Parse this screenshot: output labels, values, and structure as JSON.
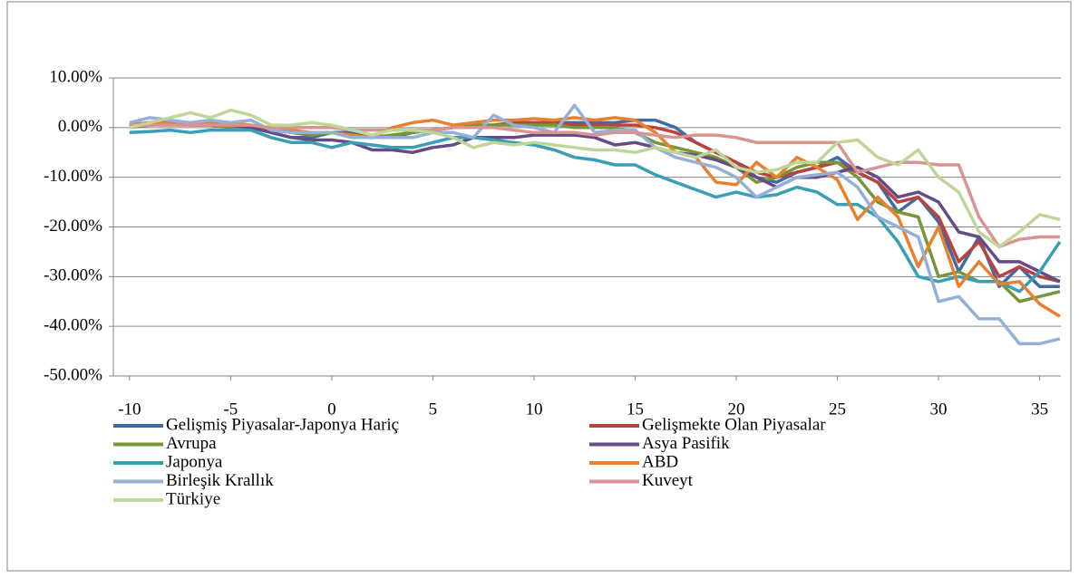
{
  "chart_data": {
    "type": "line",
    "x": [
      -10,
      -9,
      -8,
      -7,
      -6,
      -5,
      -4,
      -3,
      -2,
      -1,
      0,
      1,
      2,
      3,
      4,
      5,
      6,
      7,
      8,
      9,
      10,
      11,
      12,
      13,
      14,
      15,
      16,
      17,
      18,
      19,
      20,
      21,
      22,
      23,
      24,
      25,
      26,
      27,
      28,
      29,
      30,
      31,
      32,
      33,
      34,
      35,
      36
    ],
    "xlim": [
      -10.8,
      36.05
    ],
    "xticks": [
      -10,
      -5,
      0,
      5,
      10,
      15,
      20,
      25,
      30,
      35
    ],
    "ylim": [
      -50,
      10
    ],
    "yticks": [
      {
        "value": 10,
        "label": "10.00%"
      },
      {
        "value": 0,
        "label": "0.00%"
      },
      {
        "value": -10,
        "label": "-10.00%"
      },
      {
        "value": -20,
        "label": "-20.00%"
      },
      {
        "value": -30,
        "label": "-30.00%"
      },
      {
        "value": -40,
        "label": "-40.00%"
      },
      {
        "value": -50,
        "label": "-50.00%"
      }
    ],
    "grid": true,
    "legend": "bottom",
    "series": [
      {
        "name": "Gelişmiş Piyasalar-Japonya Hariç",
        "color": "#3f6aa6",
        "values": [
          0.5,
          1,
          1,
          1,
          0.5,
          0,
          0,
          -1,
          -2,
          -2,
          -1,
          -1,
          -2,
          -2,
          -1,
          -0.5,
          0,
          0.5,
          0.5,
          1,
          1,
          1,
          1,
          1,
          1,
          1.5,
          1.5,
          0,
          -3,
          -5,
          -7,
          -10,
          -11,
          -9,
          -8,
          -6,
          -9,
          -11,
          -17,
          -14,
          -19,
          -29,
          -22,
          -32,
          -28,
          -32,
          -32
        ]
      },
      {
        "name": "Gelişmekte Olan Piyasalar",
        "color": "#b8433f",
        "values": [
          0.5,
          1,
          1,
          0.5,
          0.5,
          0,
          0,
          -0.5,
          -1,
          -1.5,
          -1,
          -1.5,
          -2,
          -1.5,
          -1,
          -0.5,
          0,
          0.5,
          0.5,
          1,
          1,
          1,
          0.5,
          0.5,
          0.5,
          0.5,
          0,
          -1,
          -3,
          -5,
          -7,
          -9,
          -10,
          -9,
          -8,
          -7,
          -9,
          -11,
          -15,
          -14,
          -18,
          -27,
          -23,
          -30,
          -28,
          -30,
          -31
        ]
      },
      {
        "name": "Avrupa",
        "color": "#77963a",
        "values": [
          0,
          0.5,
          1,
          1,
          0.5,
          0,
          0,
          -0.5,
          -1,
          -1.5,
          -1,
          -1.5,
          -2,
          -1.5,
          -1,
          -0.5,
          0,
          0.5,
          0.5,
          0.5,
          0.5,
          0.5,
          0,
          0,
          0,
          -1,
          -3,
          -4,
          -5,
          -6,
          -8,
          -11,
          -10,
          -8,
          -7,
          -7,
          -10,
          -15,
          -17,
          -18,
          -30,
          -29,
          -31,
          -31,
          -35,
          -34,
          -33
        ]
      },
      {
        "name": "Asya Pasifik",
        "color": "#654c85",
        "values": [
          0.5,
          1,
          1,
          1,
          0.5,
          0.5,
          0,
          -1,
          -2,
          -2.5,
          -2.5,
          -3,
          -4.5,
          -4.5,
          -5,
          -4,
          -3.5,
          -2,
          -2,
          -2,
          -1.5,
          -1.5,
          -1.5,
          -2,
          -3.5,
          -3,
          -4,
          -5,
          -5.5,
          -6.5,
          -8,
          -10,
          -12,
          -10,
          -10,
          -9,
          -8,
          -10,
          -14,
          -13,
          -15,
          -21,
          -22,
          -27,
          -27,
          -29,
          -31
        ]
      },
      {
        "name": "Japonya",
        "color": "#3a9eb5",
        "values": [
          -1,
          -0.8,
          -0.5,
          -1,
          -0.5,
          -0.5,
          -0.5,
          -2,
          -3,
          -3,
          -4,
          -3,
          -3.5,
          -4,
          -4,
          -3,
          -2,
          -2,
          -2.5,
          -3,
          -3.5,
          -4.5,
          -6,
          -6.5,
          -7.5,
          -7.5,
          -9.5,
          -11,
          -12.5,
          -14,
          -13,
          -14,
          -13.5,
          -12,
          -13,
          -15.5,
          -15.5,
          -18,
          -23,
          -30,
          -31,
          -30,
          -31,
          -31,
          -33,
          -29,
          -23
        ]
      },
      {
        "name": "ABD",
        "color": "#e8812f",
        "values": [
          0.5,
          1,
          1,
          0.5,
          1,
          1,
          0.5,
          0,
          -0.5,
          -1,
          -1,
          -1.5,
          -2,
          0,
          1,
          1.5,
          0.5,
          1,
          1.5,
          1.5,
          1.8,
          1.5,
          2,
          1.5,
          2,
          1.5,
          -1,
          -5,
          -6,
          -11,
          -11.5,
          -7,
          -10,
          -6,
          -8,
          -10.5,
          -18.5,
          -14,
          -18,
          -28,
          -20,
          -32,
          -27,
          -31.5,
          -31,
          -35.5,
          -38
        ]
      },
      {
        "name": "Birleşik Krallık",
        "color": "#95b0d8",
        "values": [
          1,
          2,
          1.5,
          1,
          1.5,
          1,
          1.5,
          -0.5,
          -1,
          -1,
          -1,
          -2,
          -2,
          -2,
          -2,
          -1,
          -1,
          -2,
          2.5,
          0.5,
          0,
          -1,
          4.5,
          -1,
          -0.5,
          -0.5,
          -4,
          -6,
          -7,
          -8,
          -10,
          -14,
          -12,
          -10,
          -9.5,
          -9,
          -12,
          -18,
          -20,
          -22,
          -35,
          -34,
          -38.5,
          -38.5,
          -43.5,
          -43.5,
          -42.5
        ]
      },
      {
        "name": "Kuveyt",
        "color": "#d99391",
        "values": [
          0.5,
          0.5,
          0.5,
          0.5,
          0.5,
          0.5,
          0.5,
          0,
          0,
          0,
          0,
          -0.5,
          -0.5,
          -0.5,
          -0.5,
          -0.5,
          0,
          0,
          0,
          -0.5,
          -1,
          -1,
          -1,
          -1.5,
          -1,
          -1,
          -1.5,
          -2,
          -1.5,
          -1.5,
          -2,
          -3,
          -3,
          -3,
          -3,
          -3,
          -9,
          -8,
          -7,
          -7,
          -7.5,
          -7.5,
          -18,
          -24,
          -22.5,
          -22,
          -22
        ]
      },
      {
        "name": "Türkiye",
        "color": "#bfd699",
        "values": [
          0,
          1,
          2,
          3,
          2,
          3.5,
          2.5,
          0.5,
          0.5,
          1,
          0.5,
          -0.5,
          -1.5,
          -0.5,
          -0.5,
          -1,
          -2,
          -4,
          -3,
          -3.5,
          -3,
          -3.5,
          -4,
          -4.5,
          -4.5,
          -5,
          -4,
          -5,
          -6,
          -4.5,
          -8,
          -9,
          -8.5,
          -7,
          -7,
          -3,
          -2.5,
          -6,
          -7.5,
          -4.5,
          -10,
          -13,
          -21,
          -24,
          -21,
          -17.5,
          -18.5
        ]
      }
    ]
  }
}
